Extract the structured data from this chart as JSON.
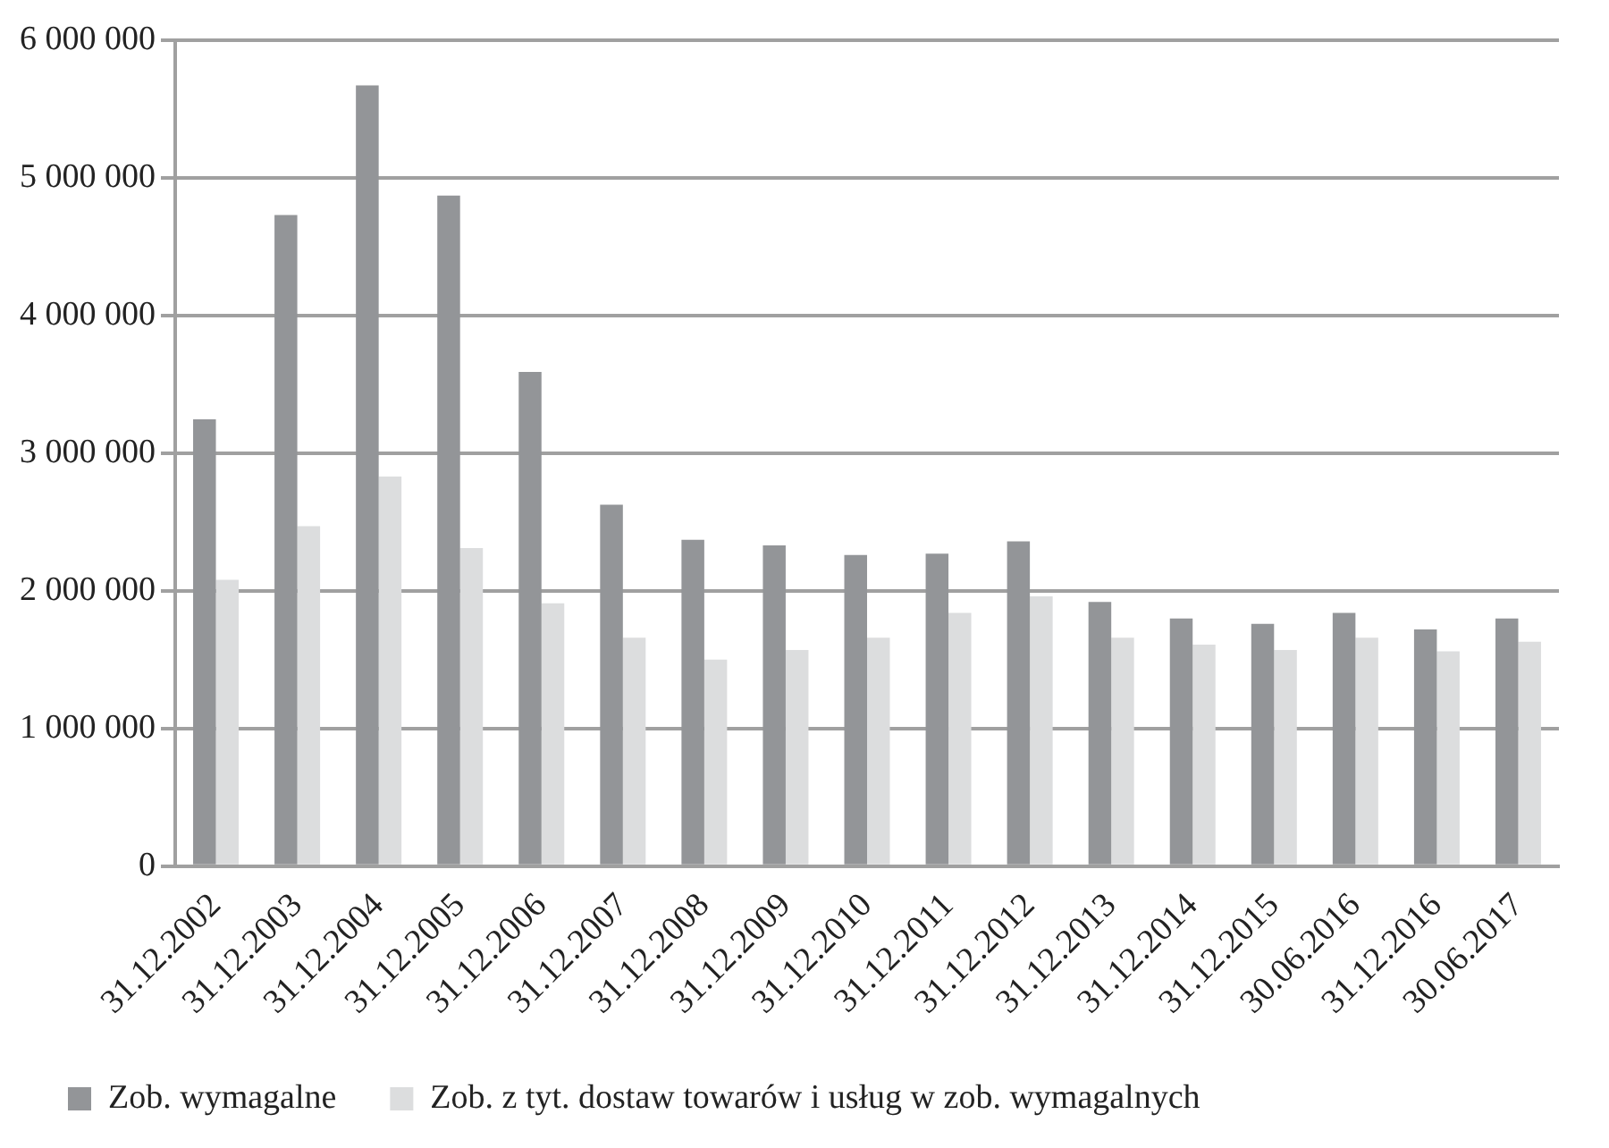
{
  "chart_data": {
    "type": "bar",
    "categories": [
      "31.12.2002",
      "31.12.2003",
      "31.12.2004",
      "31.12.2005",
      "31.12.2006",
      "31.12.2007",
      "31.12.2008",
      "31.12.2009",
      "31.12.2010",
      "31.12.2011",
      "31.12.2012",
      "31.12.2013",
      "31.12.2014",
      "31.12.2015",
      "30.06.2016",
      "31.12.2016",
      "30.06.2017"
    ],
    "series": [
      {
        "name": "Zob. wymagalne",
        "color": "#939598",
        "values": [
          3245000,
          4730000,
          5670000,
          4870000,
          3590000,
          2625000,
          2370000,
          2330000,
          2260000,
          2270000,
          2360000,
          1920000,
          1800000,
          1760000,
          1840000,
          1720000,
          1800000
        ]
      },
      {
        "name": "Zob. z tyt. dostaw towarów i usług w zob. wymagalnych",
        "color": "#dcddde",
        "values": [
          2080000,
          2470000,
          2830000,
          2310000,
          1910000,
          1660000,
          1500000,
          1570000,
          1660000,
          1840000,
          1960000,
          1660000,
          1610000,
          1570000,
          1660000,
          1560000,
          1630000
        ]
      }
    ],
    "ylim": [
      0,
      6000000
    ],
    "yticks": [
      {
        "value": 0,
        "label": "0"
      },
      {
        "value": 1000000,
        "label": "1 000 000"
      },
      {
        "value": 2000000,
        "label": "2 000 000"
      },
      {
        "value": 3000000,
        "label": "3 000 000"
      },
      {
        "value": 4000000,
        "label": "4 000 000"
      },
      {
        "value": 5000000,
        "label": "5 000 000"
      },
      {
        "value": 6000000,
        "label": "6 000 000"
      }
    ],
    "grid": "y",
    "legend": "bottom"
  }
}
